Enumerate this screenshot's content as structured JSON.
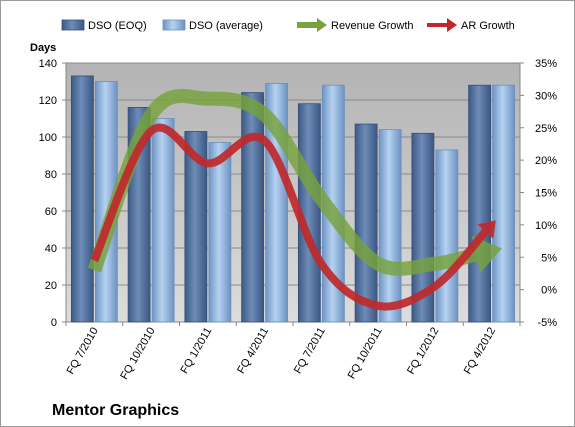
{
  "chart_data": {
    "type": "bar",
    "categories": [
      "FQ 7/2010",
      "FQ 10/2010",
      "FQ 1/2011",
      "FQ 4/2011",
      "FQ 7/2011",
      "FQ 10/2011",
      "FQ 1/2012",
      "FQ 4/2012"
    ],
    "series": [
      {
        "name": "DSO (EOQ)",
        "type": "bar",
        "axis": "left",
        "color": "#4f6e99",
        "values": [
          133,
          116,
          103,
          124,
          118,
          107,
          102,
          128
        ]
      },
      {
        "name": "DSO (average)",
        "type": "bar",
        "axis": "left",
        "color": "#8fb4de",
        "values": [
          130,
          110,
          97,
          129,
          128,
          104,
          93,
          128
        ]
      },
      {
        "name": "Revenue Growth",
        "type": "line",
        "axis": "right",
        "color": "#77a23c",
        "values": [
          3,
          27,
          29.5,
          27,
          14,
          4,
          4,
          6
        ]
      },
      {
        "name": "AR Growth",
        "type": "line",
        "axis": "right",
        "color": "#c0282b",
        "values": [
          4.5,
          24.5,
          19.5,
          23,
          4,
          -2.5,
          0.5,
          10
        ]
      }
    ],
    "ylabel": "Days",
    "ylim": [
      0,
      140
    ],
    "yticks": [
      "0",
      "20",
      "40",
      "60",
      "80",
      "100",
      "120",
      "140"
    ],
    "y2lim": [
      -5,
      35
    ],
    "y2ticks": [
      "-5%",
      "0%",
      "5%",
      "10%",
      "15%",
      "20%",
      "25%",
      "30%",
      "35%"
    ],
    "company": "Mentor Graphics",
    "grid": true,
    "legend_position": "top",
    "plot_background": "#c4c4c4"
  }
}
